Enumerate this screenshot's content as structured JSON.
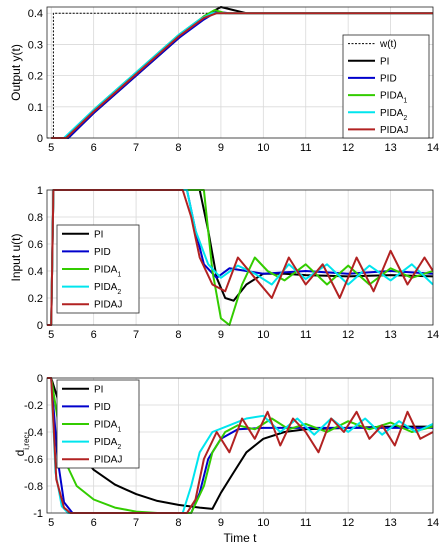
{
  "chart_data": [
    {
      "type": "line",
      "ylabel": "Output y(t)",
      "xlabel": "",
      "xlim": [
        4.9,
        14
      ],
      "ylim": [
        0,
        0.42
      ],
      "xticks": [
        "5",
        "6",
        "7",
        "8",
        "9",
        "10",
        "11",
        "12",
        "13",
        "14"
      ],
      "yticks": [
        "0",
        "0.1",
        "0.2",
        "0.3",
        "0.4"
      ],
      "grid": true,
      "legend_position": "right",
      "legend": [
        "w(t)",
        "PI",
        "PID",
        "PIDA1",
        "PIDA2",
        "PIDAJ"
      ],
      "series": [
        {
          "name": "w(t)",
          "color": "#000000",
          "dashed": true,
          "x": [
            4.9,
            5.05,
            5.05,
            14
          ],
          "y": [
            0,
            0,
            0.4,
            0.4
          ]
        },
        {
          "name": "PI",
          "color": "#000000",
          "x": [
            5,
            5.4,
            6,
            7,
            8,
            8.6,
            9,
            9.3,
            9.6,
            10,
            11,
            12,
            13,
            14
          ],
          "y": [
            0,
            0,
            0.08,
            0.2,
            0.32,
            0.39,
            0.42,
            0.41,
            0.4,
            0.4,
            0.4,
            0.4,
            0.4,
            0.4
          ]
        },
        {
          "name": "PID",
          "color": "#0000cc",
          "x": [
            5,
            5.4,
            6,
            7,
            8,
            8.6,
            8.9,
            9.2,
            10,
            11,
            12,
            13,
            14
          ],
          "y": [
            0,
            0,
            0.08,
            0.2,
            0.32,
            0.38,
            0.405,
            0.4,
            0.4,
            0.4,
            0.4,
            0.4,
            0.4
          ]
        },
        {
          "name": "PIDA1",
          "color": "#33cc00",
          "x": [
            5,
            5.35,
            6,
            7,
            8,
            8.6,
            8.85,
            9.1,
            10,
            11,
            12,
            13,
            14
          ],
          "y": [
            0,
            0,
            0.09,
            0.21,
            0.33,
            0.39,
            0.41,
            0.4,
            0.4,
            0.4,
            0.4,
            0.4,
            0.4
          ]
        },
        {
          "name": "PIDA2",
          "color": "#00e5ee",
          "x": [
            5,
            5.3,
            6,
            7,
            8,
            8.5,
            8.8,
            9,
            10,
            11,
            12,
            13,
            14
          ],
          "y": [
            0,
            0,
            0.09,
            0.21,
            0.33,
            0.38,
            0.4,
            0.4,
            0.4,
            0.4,
            0.4,
            0.4,
            0.4
          ]
        },
        {
          "name": "PIDAJ",
          "color": "#b22222",
          "x": [
            5,
            5.35,
            6,
            7,
            8,
            8.6,
            8.9,
            9.1,
            10,
            11,
            12,
            13,
            14
          ],
          "y": [
            0,
            0,
            0.085,
            0.205,
            0.325,
            0.385,
            0.4,
            0.4,
            0.4,
            0.4,
            0.4,
            0.4,
            0.4
          ]
        }
      ]
    },
    {
      "type": "line",
      "ylabel": "Input u(t)",
      "xlabel": "",
      "xlim": [
        4.9,
        14
      ],
      "ylim": [
        0,
        1
      ],
      "xticks": [
        "5",
        "6",
        "7",
        "8",
        "9",
        "10",
        "11",
        "12",
        "13",
        "14"
      ],
      "yticks": [
        "0",
        "0.2",
        "0.4",
        "0.6",
        "0.8",
        "1"
      ],
      "grid": true,
      "legend_position": "left",
      "legend": [
        "PI",
        "PID",
        "PIDA1",
        "PIDA2",
        "PIDAJ"
      ],
      "series": [
        {
          "name": "PI",
          "color": "#000000",
          "x": [
            4.9,
            5.0,
            5.05,
            8.5,
            8.7,
            8.9,
            9.1,
            9.3,
            9.6,
            10,
            10.5,
            11,
            12,
            13,
            14
          ],
          "y": [
            0,
            0,
            1,
            1,
            0.7,
            0.35,
            0.2,
            0.18,
            0.3,
            0.38,
            0.38,
            0.37,
            0.36,
            0.37,
            0.36
          ]
        },
        {
          "name": "PID",
          "color": "#0000cc",
          "x": [
            4.9,
            5.0,
            5.05,
            8.2,
            8.4,
            8.6,
            8.9,
            9.2,
            9.6,
            10,
            11,
            12,
            13,
            14
          ],
          "y": [
            0,
            0,
            1,
            1,
            0.7,
            0.45,
            0.35,
            0.42,
            0.4,
            0.38,
            0.4,
            0.38,
            0.4,
            0.38
          ]
        },
        {
          "name": "PIDA1",
          "color": "#33cc00",
          "x": [
            4.9,
            5.0,
            5.05,
            8.6,
            8.8,
            9.0,
            9.2,
            9.5,
            9.8,
            10.1,
            10.5,
            11,
            11.5,
            12,
            12.5,
            13,
            13.5,
            14
          ],
          "y": [
            0,
            0,
            1,
            1,
            0.4,
            0.05,
            0.0,
            0.3,
            0.5,
            0.4,
            0.33,
            0.45,
            0.3,
            0.44,
            0.3,
            0.42,
            0.35,
            0.4
          ]
        },
        {
          "name": "PIDA2",
          "color": "#00e5ee",
          "x": [
            4.9,
            5.0,
            5.05,
            8.2,
            8.4,
            8.7,
            9.0,
            9.4,
            9.8,
            10.2,
            10.6,
            11,
            11.5,
            12,
            12.5,
            13,
            13.5,
            14
          ],
          "y": [
            0,
            0,
            1,
            1,
            0.7,
            0.45,
            0.35,
            0.44,
            0.38,
            0.3,
            0.45,
            0.34,
            0.45,
            0.3,
            0.44,
            0.33,
            0.45,
            0.3
          ]
        },
        {
          "name": "PIDAJ",
          "color": "#b22222",
          "x": [
            4.9,
            5.0,
            5.05,
            8.1,
            8.3,
            8.5,
            8.8,
            9.1,
            9.4,
            9.8,
            10.2,
            10.6,
            11.0,
            11.4,
            11.8,
            12.2,
            12.6,
            13.0,
            13.4,
            13.8,
            14
          ],
          "y": [
            0,
            0,
            1,
            1,
            0.8,
            0.5,
            0.3,
            0.25,
            0.5,
            0.35,
            0.2,
            0.5,
            0.3,
            0.45,
            0.2,
            0.5,
            0.25,
            0.55,
            0.3,
            0.5,
            0.4
          ]
        }
      ]
    },
    {
      "type": "line",
      "ylabel": "d",
      "ylabel_sub": "i,rec",
      "xlabel": "Time t",
      "xlim": [
        4.9,
        14
      ],
      "ylim": [
        -1,
        0
      ],
      "xticks": [
        "5",
        "6",
        "7",
        "8",
        "9",
        "10",
        "11",
        "12",
        "13",
        "14"
      ],
      "yticks": [
        "-1",
        "-0.8",
        "-0.6",
        "-0.4",
        "-0.2",
        "0"
      ],
      "grid": true,
      "legend_position": "top-left",
      "legend": [
        "PI",
        "PID",
        "PIDA1",
        "PIDA2",
        "PIDAJ"
      ],
      "series": [
        {
          "name": "PI",
          "color": "#000000",
          "x": [
            4.9,
            5.0,
            5.5,
            6.0,
            6.5,
            7.0,
            7.5,
            8.0,
            8.5,
            8.8,
            9.0,
            9.3,
            9.6,
            10,
            10.5,
            11,
            12,
            13,
            14
          ],
          "y": [
            0,
            0,
            -0.5,
            -0.68,
            -0.79,
            -0.86,
            -0.91,
            -0.94,
            -0.96,
            -0.97,
            -0.85,
            -0.7,
            -0.55,
            -0.45,
            -0.4,
            -0.38,
            -0.37,
            -0.36,
            -0.36
          ]
        },
        {
          "name": "PID",
          "color": "#0000cc",
          "x": [
            4.9,
            5.0,
            5.15,
            5.3,
            5.5,
            8.3,
            8.5,
            8.7,
            9.0,
            9.4,
            10,
            11,
            12,
            13,
            14
          ],
          "y": [
            0,
            0,
            -0.6,
            -0.92,
            -1,
            -1,
            -0.85,
            -0.6,
            -0.45,
            -0.38,
            -0.37,
            -0.37,
            -0.37,
            -0.37,
            -0.37
          ]
        },
        {
          "name": "PIDA1",
          "color": "#33cc00",
          "x": [
            4.9,
            5.0,
            5.3,
            5.6,
            6.0,
            6.5,
            7.0,
            7.5,
            8.0,
            8.3,
            8.6,
            8.8,
            9.1,
            9.4,
            9.8,
            10.2,
            10.6,
            11,
            11.5,
            12,
            12.5,
            13,
            13.5,
            14
          ],
          "y": [
            0,
            0,
            -0.6,
            -0.8,
            -0.9,
            -0.96,
            -0.99,
            -1,
            -1,
            -1,
            -0.8,
            -0.55,
            -0.4,
            -0.35,
            -0.38,
            -0.3,
            -0.38,
            -0.34,
            -0.4,
            -0.32,
            -0.38,
            -0.33,
            -0.4,
            -0.36
          ]
        },
        {
          "name": "PIDA2",
          "color": "#00e5ee",
          "x": [
            4.9,
            5.0,
            5.1,
            5.25,
            5.4,
            8.1,
            8.3,
            8.5,
            8.8,
            9.2,
            9.6,
            10,
            10.4,
            10.8,
            11.2,
            11.6,
            12,
            12.4,
            12.8,
            13.2,
            13.6,
            14
          ],
          "y": [
            0,
            0,
            -0.7,
            -0.95,
            -1,
            -1,
            -0.8,
            -0.55,
            -0.4,
            -0.35,
            -0.3,
            -0.28,
            -0.4,
            -0.3,
            -0.42,
            -0.3,
            -0.4,
            -0.3,
            -0.42,
            -0.32,
            -0.4,
            -0.34
          ]
        },
        {
          "name": "PIDAJ",
          "color": "#b22222",
          "x": [
            4.9,
            5.0,
            5.12,
            5.3,
            5.45,
            8.2,
            8.4,
            8.6,
            8.9,
            9.2,
            9.5,
            9.8,
            10.1,
            10.4,
            10.7,
            11.0,
            11.3,
            11.6,
            11.9,
            12.2,
            12.5,
            12.8,
            13.1,
            13.4,
            13.7,
            14
          ],
          "y": [
            0,
            0,
            -0.75,
            -0.96,
            -1,
            -1,
            -0.9,
            -0.6,
            -0.4,
            -0.55,
            -0.3,
            -0.45,
            -0.25,
            -0.5,
            -0.3,
            -0.4,
            -0.55,
            -0.3,
            -0.4,
            -0.25,
            -0.45,
            -0.35,
            -0.5,
            -0.25,
            -0.45,
            -0.4
          ]
        }
      ]
    }
  ]
}
